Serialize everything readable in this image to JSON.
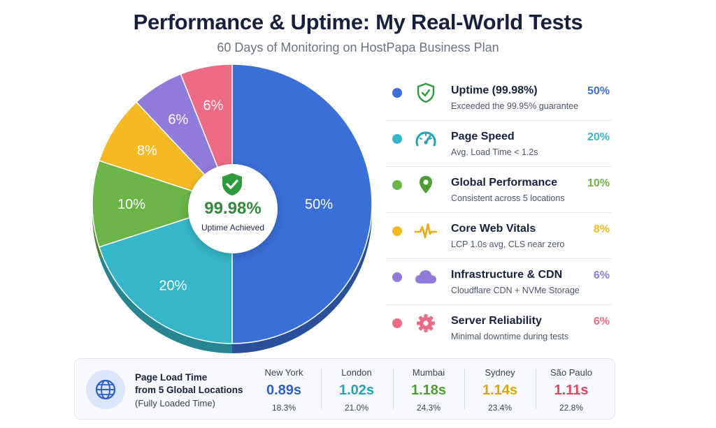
{
  "header": {
    "title": "Performance & Uptime: My Real-World Tests",
    "subtitle": "60 Days of Monitoring on HostPapa Business Plan"
  },
  "center": {
    "value": "99.98%",
    "label": "Uptime Achieved",
    "icon": "shield-check-icon"
  },
  "chart_data": {
    "type": "pie",
    "categories": [
      "Uptime (99.98%)",
      "Page Speed",
      "Global Performance",
      "Core Web Vitals",
      "Infrastructure & CDN",
      "Server Reliability"
    ],
    "values": [
      50,
      20,
      10,
      8,
      6,
      6
    ],
    "labels": [
      "50%",
      "20%",
      "10%",
      "8%",
      "6%",
      "6%"
    ],
    "colors": [
      "#3a6fd8",
      "#36b7c9",
      "#6ab546",
      "#f4b923",
      "#8f7bd9",
      "#ee6b86"
    ],
    "legend": "right"
  },
  "legend": [
    {
      "name": "Uptime (99.98%)",
      "desc": "Exceeded the 99.95% guarantee",
      "pct": "50%",
      "color": "#3a6fd8",
      "icon": "shield-check-icon"
    },
    {
      "name": "Page Speed",
      "desc": "Avg. Load Time < 1.2s",
      "pct": "20%",
      "color": "#36b7c9",
      "icon": "speedometer-icon"
    },
    {
      "name": "Global Performance",
      "desc": "Consistent across 5 locations",
      "pct": "10%",
      "color": "#6ab546",
      "icon": "map-pin-icon"
    },
    {
      "name": "Core Web Vitals",
      "desc": "LCP 1.0s avg, CLS near zero",
      "pct": "8%",
      "color": "#f4b923",
      "icon": "pulse-icon"
    },
    {
      "name": "Infrastructure & CDN",
      "desc": "Cloudflare CDN + NVMe Storage",
      "pct": "6%",
      "color": "#8f7bd9",
      "icon": "cloud-icon"
    },
    {
      "name": "Server Reliability",
      "desc": "Minimal downtime during tests",
      "pct": "6%",
      "color": "#ee6b86",
      "icon": "gear-icon"
    }
  ],
  "load_times": {
    "title_line1": "Page Load Time",
    "title_line2": "from 5 Global Locations",
    "subtitle": "(Fully Loaded Time)",
    "icon": "globe-icon",
    "cities": [
      {
        "name": "New York",
        "time": "0.89s",
        "pct": "18.3%",
        "color": "#2f5fc6"
      },
      {
        "name": "London",
        "time": "1.02s",
        "pct": "21.0%",
        "color": "#23a3b5"
      },
      {
        "name": "Mumbai",
        "time": "1.18s",
        "pct": "24.3%",
        "color": "#4e9d33"
      },
      {
        "name": "Sydney",
        "time": "1.14s",
        "pct": "23.4%",
        "color": "#e0a512"
      },
      {
        "name": "São Paulo",
        "time": "1.11s",
        "pct": "22.8%",
        "color": "#d8485f"
      }
    ]
  }
}
